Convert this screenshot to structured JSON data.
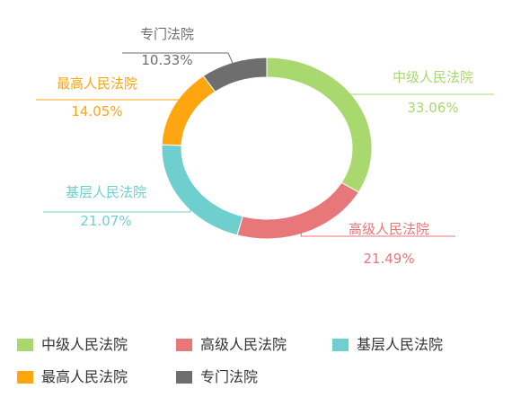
{
  "chart_data": {
    "type": "pie",
    "donut": true,
    "start": "top",
    "direction": "clockwise",
    "legend_position": "bottom-left",
    "slices": [
      {
        "name": "中级人民法院",
        "value": 33.06,
        "label": "33.06%",
        "color": "#a8d86e"
      },
      {
        "name": "高级人民法院",
        "value": 21.49,
        "label": "21.49%",
        "color": "#e8777a"
      },
      {
        "name": "基层人民法院",
        "value": 21.07,
        "label": "21.07%",
        "color": "#6fcfcf"
      },
      {
        "name": "最高人民法院",
        "value": 14.05,
        "label": "14.05%",
        "color": "#ffa50f"
      },
      {
        "name": "专门法院",
        "value": 10.33,
        "label": "10.33%",
        "color": "#6e6e6e"
      }
    ]
  }
}
